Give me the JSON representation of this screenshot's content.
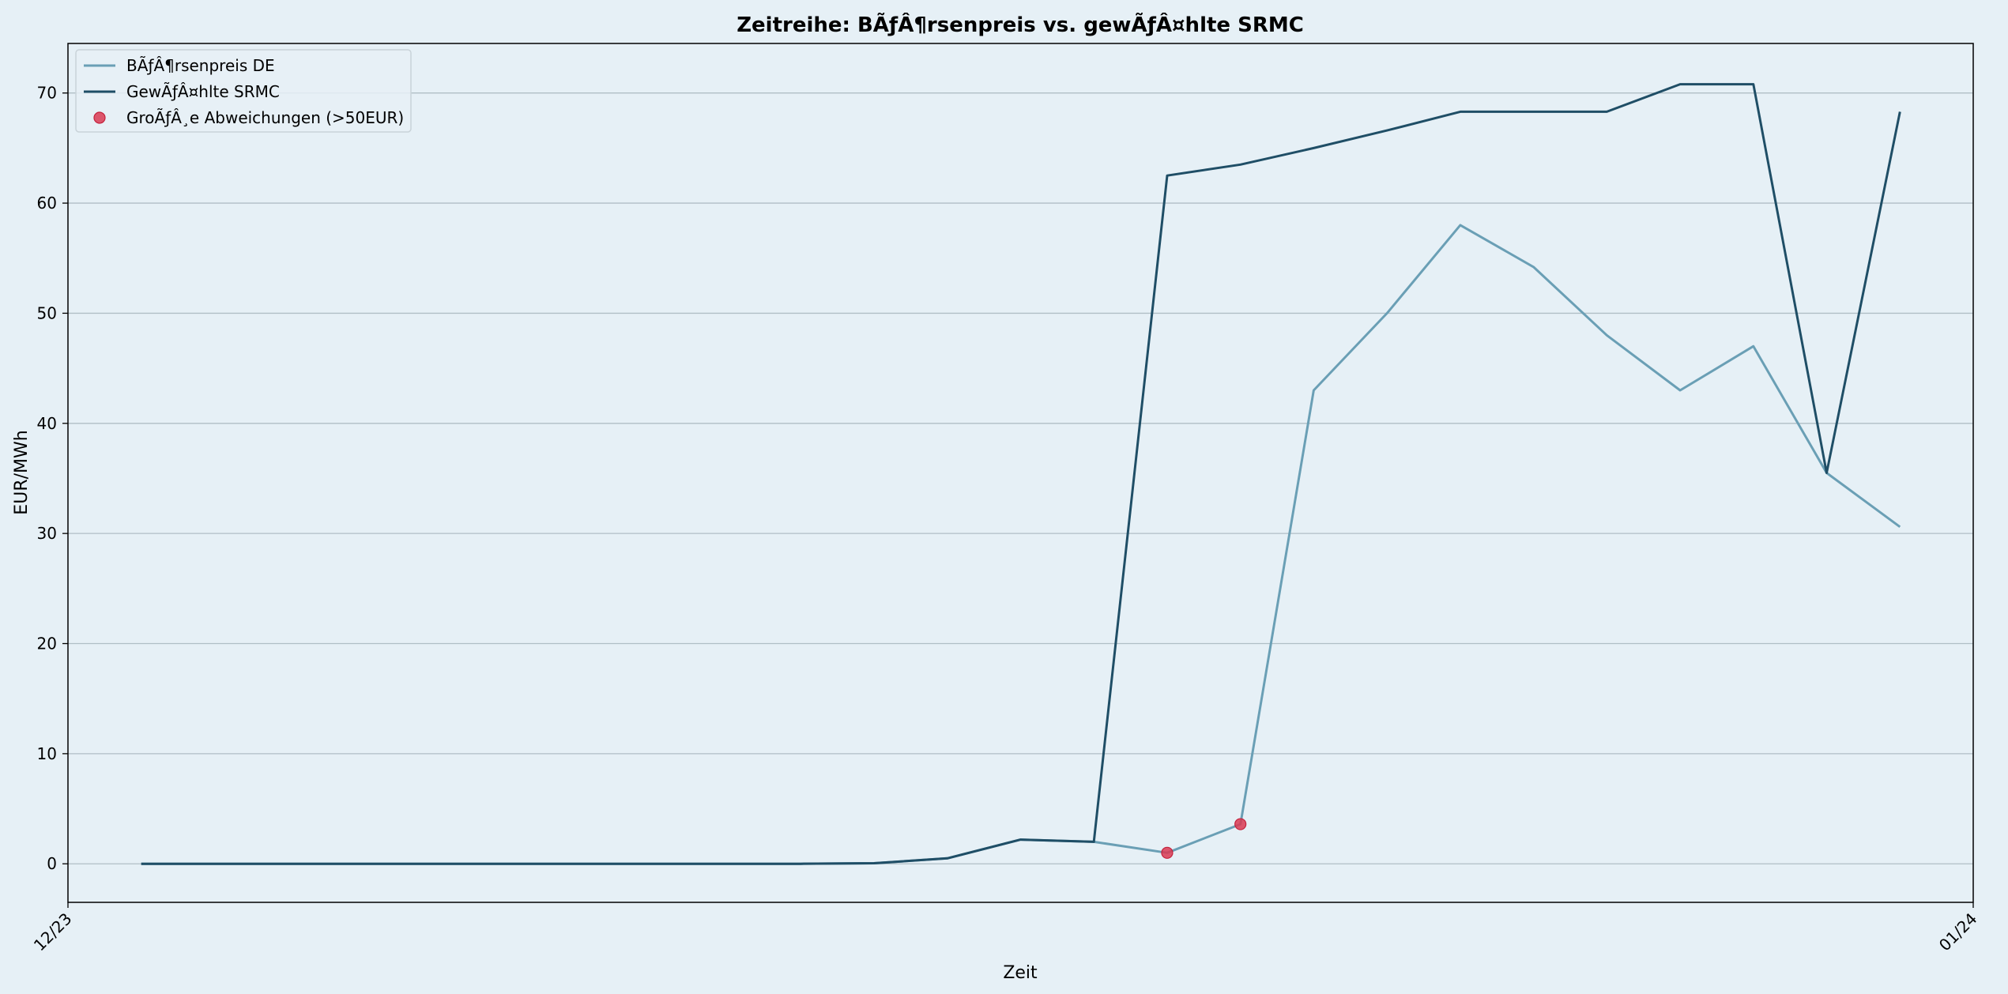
{
  "chart_data": {
    "type": "line",
    "title": "Zeitreihe: BÃƒÂ¶rsenpreis vs. gewÃƒÂ¤hlte SRMC",
    "xlabel": "Zeit",
    "ylabel": "EUR/MWh",
    "xlim": [
      "12/23",
      "01/24"
    ],
    "ylim": [
      -3.5,
      74.5
    ],
    "x_tick_labels": [
      "12/23",
      "01/24"
    ],
    "y_ticks": [
      0,
      10,
      20,
      30,
      40,
      50,
      60,
      70
    ],
    "grid": "horizontal",
    "legend_position": "top-left",
    "colors": {
      "boersenpreis": "#6a9fb5",
      "srmc": "#1f4e66",
      "abweichungen": "#d93a52",
      "background": "#e6f0f6"
    },
    "x_positions": [
      1,
      2,
      3,
      4,
      5,
      6,
      7,
      8,
      9,
      10,
      11,
      12,
      13,
      14,
      15,
      16,
      17,
      18,
      19,
      20,
      21,
      22,
      23,
      24,
      25
    ],
    "series": [
      {
        "name": "BÃƒÂ¶rsenpreis DE",
        "values": [
          0.0,
          0.0,
          0.0,
          0.0,
          0.0,
          0.0,
          0.0,
          0.0,
          0.0,
          0.0,
          0.05,
          0.5,
          2.2,
          2.0,
          1.0,
          3.6,
          43.0,
          50.0,
          58.0,
          54.2,
          48.0,
          43.0,
          47.0,
          35.5,
          30.6
        ]
      },
      {
        "name": "GewÃƒÂ¤hlte SRMC",
        "values": [
          0.0,
          0.0,
          0.0,
          0.0,
          0.0,
          0.0,
          0.0,
          0.0,
          0.0,
          0.0,
          0.05,
          0.5,
          2.2,
          2.0,
          62.5,
          63.5,
          65.0,
          66.6,
          68.3,
          68.3,
          68.3,
          70.8,
          70.8,
          35.5,
          68.3
        ]
      }
    ],
    "scatter": {
      "name": "GroÃƒÂ¸e Abweichungen (>50EUR)",
      "points": [
        {
          "x": 15,
          "y": 1.0
        },
        {
          "x": 16,
          "y": 3.6
        }
      ]
    }
  }
}
